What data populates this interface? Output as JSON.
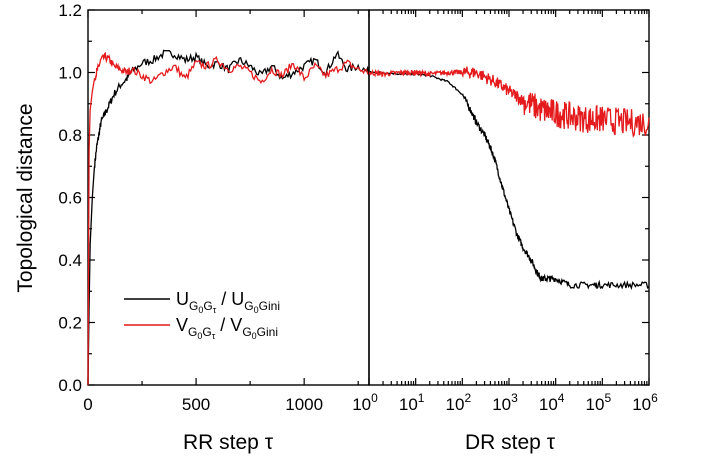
{
  "chart_data": [
    {
      "type": "line",
      "panel": "left",
      "xlabel": "RR step",
      "xlabel_symbol": "τ",
      "ylabel": "Topological distance",
      "xlim": [
        0,
        1300
      ],
      "ylim": [
        0.0,
        1.2
      ],
      "x_ticks": [
        0,
        500,
        1000
      ],
      "x_tick_labels": [
        "0",
        "500",
        "1000"
      ],
      "y_ticks": [
        0.0,
        0.2,
        0.4,
        0.6,
        0.8,
        1.0,
        1.2
      ],
      "y_tick_labels": [
        "0.0",
        "0.2",
        "0.4",
        "0.6",
        "0.8",
        "1.0",
        "1.2"
      ],
      "legend": {
        "position": "lower-left",
        "entries": [
          {
            "main": "U",
            "sub1": "G",
            "sub2": "0",
            "sub3": "G",
            "sub4": "τ",
            "sep": " / ",
            "main2": "U",
            "sub5": "G",
            "sub6": "0",
            "sub7": "G",
            "sub8": "ini",
            "color": "#000000"
          },
          {
            "main": "V",
            "sub1": "G",
            "sub2": "0",
            "sub3": "G",
            "sub4": "τ",
            "sep": " / ",
            "main2": "V",
            "sub5": "G",
            "sub6": "0",
            "sub7": "G",
            "sub8": "ini",
            "color": "#e41a1c"
          }
        ]
      },
      "series": [
        {
          "color": "#000000",
          "x": [
            0,
            5,
            10,
            20,
            30,
            40,
            50,
            60,
            80,
            100,
            120,
            150,
            180,
            200,
            250,
            300,
            350,
            400,
            450,
            500,
            550,
            600,
            650,
            700,
            750,
            800,
            850,
            900,
            950,
            1000,
            1050,
            1100,
            1150,
            1200,
            1250,
            1300
          ],
          "y": [
            0.0,
            0.25,
            0.45,
            0.6,
            0.7,
            0.76,
            0.8,
            0.84,
            0.87,
            0.9,
            0.93,
            0.96,
            0.98,
            1.0,
            1.03,
            1.04,
            1.06,
            1.06,
            1.04,
            1.05,
            1.02,
            1.03,
            1.01,
            1.04,
            1.02,
            0.99,
            1.02,
            0.98,
            1.0,
            1.02,
            1.04,
            1.0,
            1.06,
            1.01,
            1.02,
            1.0
          ]
        },
        {
          "color": "#e41a1c",
          "x": [
            0,
            5,
            10,
            20,
            30,
            40,
            50,
            60,
            80,
            100,
            120,
            150,
            180,
            200,
            250,
            300,
            350,
            400,
            450,
            500,
            550,
            600,
            650,
            700,
            750,
            800,
            850,
            900,
            950,
            1000,
            1050,
            1100,
            1150,
            1200,
            1250,
            1300
          ],
          "y": [
            0.0,
            0.75,
            0.88,
            0.94,
            0.98,
            1.0,
            1.02,
            1.04,
            1.05,
            1.04,
            1.02,
            1.01,
            1.0,
            1.01,
            0.99,
            0.97,
            1.0,
            1.02,
            0.98,
            1.03,
            1.02,
            1.04,
            1.01,
            1.02,
            1.0,
            0.97,
            1.01,
            0.99,
            1.03,
            0.98,
            1.02,
            0.99,
            1.01,
            1.03,
            1.01,
            1.0
          ]
        }
      ]
    },
    {
      "type": "line",
      "panel": "right",
      "xlabel": "DR step",
      "xlabel_symbol": "τ",
      "xscale": "log",
      "xlim": [
        1,
        1000000
      ],
      "ylim": [
        0.0,
        1.2
      ],
      "x_tick_labels": [
        {
          "base": "10",
          "exp": "0"
        },
        {
          "base": "10",
          "exp": "1"
        },
        {
          "base": "10",
          "exp": "2"
        },
        {
          "base": "10",
          "exp": "3"
        },
        {
          "base": "10",
          "exp": "4"
        },
        {
          "base": "10",
          "exp": "5"
        },
        {
          "base": "10",
          "exp": "6"
        }
      ],
      "series": [
        {
          "color": "#000000",
          "x": [
            1,
            2,
            5,
            10,
            20,
            50,
            100,
            150,
            200,
            300,
            400,
            500,
            700,
            1000,
            1500,
            2000,
            3000,
            4000,
            5000,
            7000,
            10000,
            20000,
            50000,
            100000,
            300000,
            1000000
          ],
          "y": [
            1.0,
            1.0,
            0.995,
            0.995,
            0.99,
            0.97,
            0.93,
            0.88,
            0.84,
            0.8,
            0.76,
            0.72,
            0.64,
            0.56,
            0.48,
            0.44,
            0.4,
            0.36,
            0.34,
            0.34,
            0.34,
            0.32,
            0.32,
            0.32,
            0.32,
            0.32
          ]
        },
        {
          "color": "#e41a1c",
          "x": [
            1,
            2,
            5,
            10,
            20,
            50,
            100,
            200,
            500,
            1000,
            2000,
            5000,
            10000,
            20000,
            50000,
            100000,
            300000,
            1000000
          ],
          "y": [
            1.0,
            0.995,
            1.0,
            1.0,
            0.995,
            1.0,
            1.0,
            1.0,
            0.97,
            0.94,
            0.91,
            0.88,
            0.87,
            0.86,
            0.85,
            0.85,
            0.84,
            0.84
          ]
        }
      ]
    }
  ]
}
